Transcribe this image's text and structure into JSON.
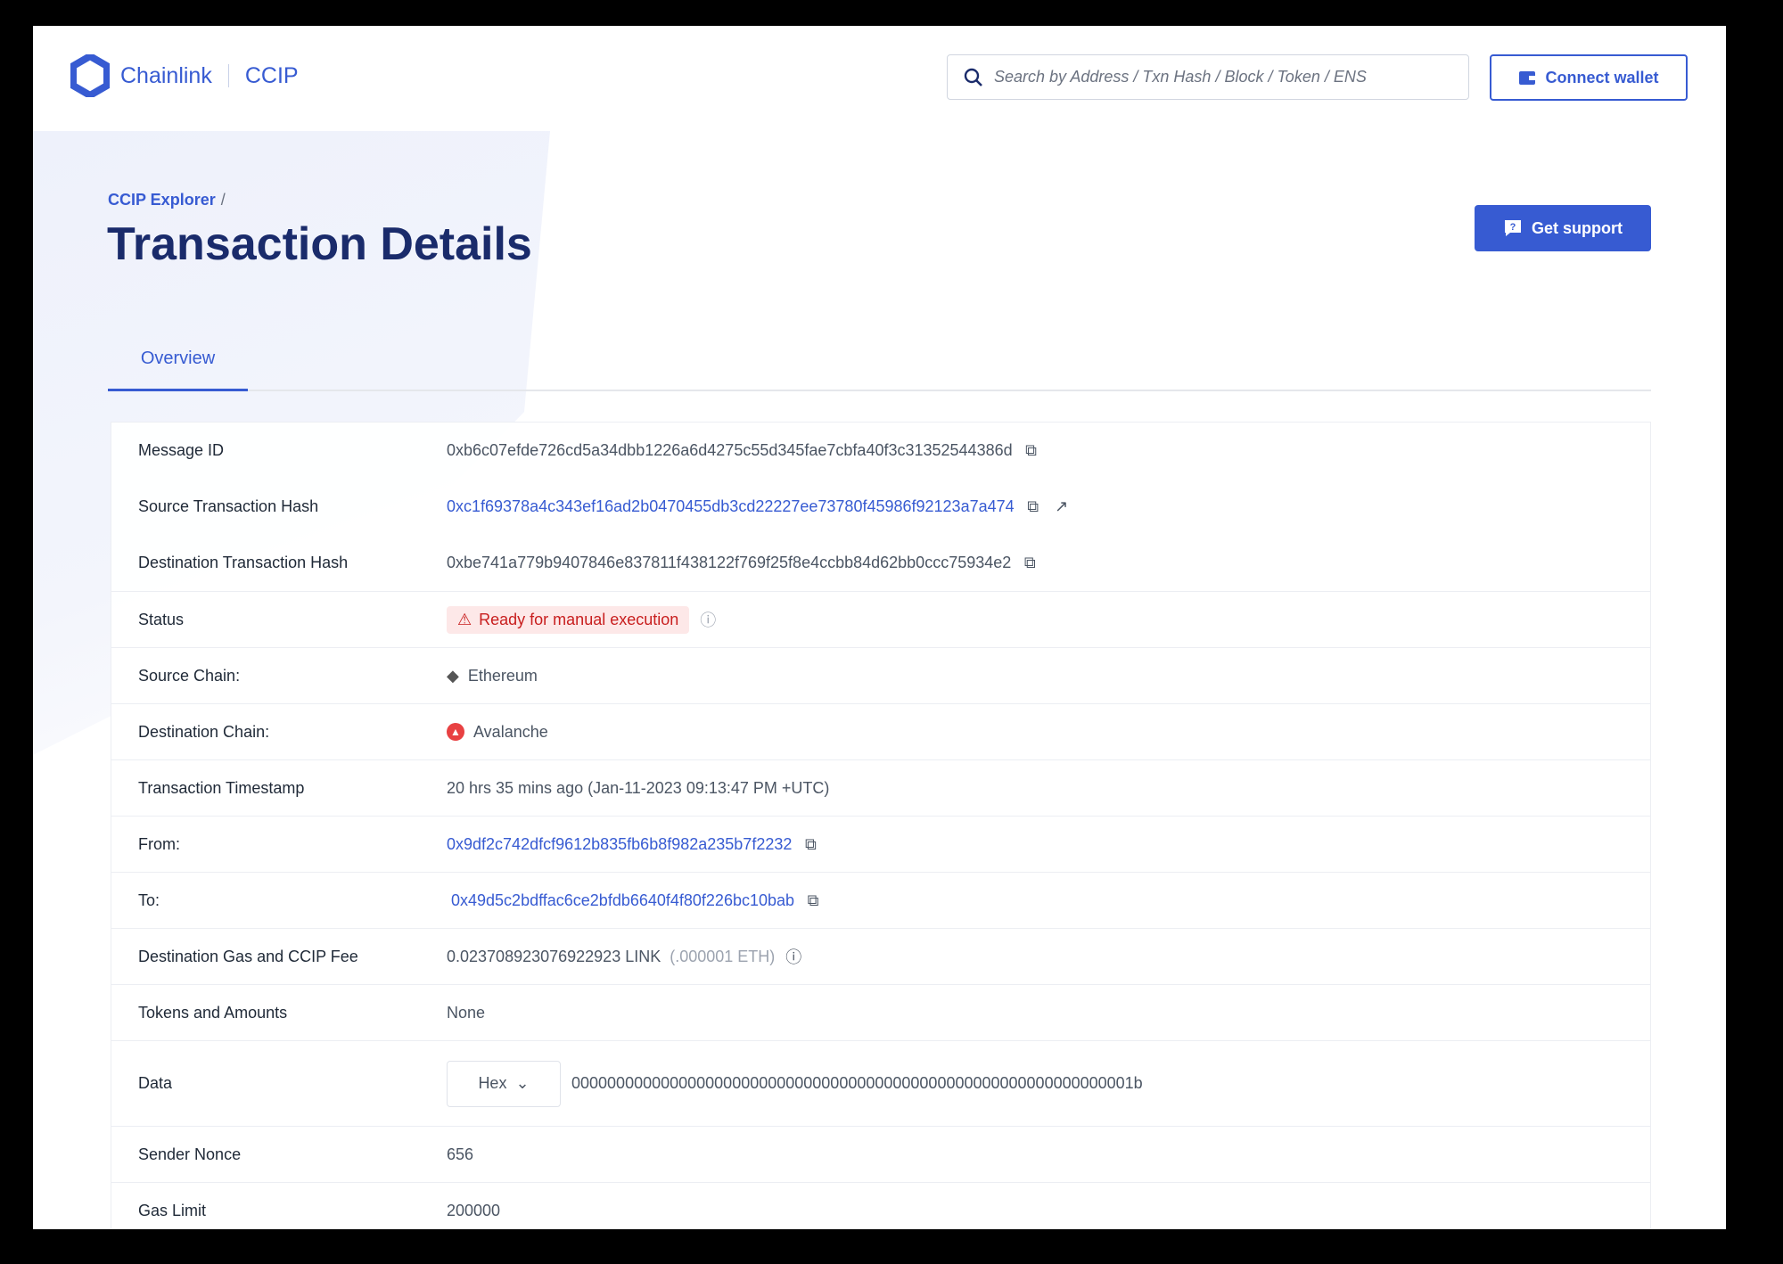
{
  "header": {
    "brand": "Chainlink",
    "product": "CCIP",
    "search_placeholder": "Search by Address / Txn Hash / Block / Token / ENS",
    "connect_wallet": "Connect wallet"
  },
  "breadcrumb": {
    "root": "CCIP Explorer",
    "separator": "/"
  },
  "page": {
    "title": "Transaction Details",
    "get_support": "Get support"
  },
  "tabs": [
    {
      "label": "Overview",
      "active": true
    }
  ],
  "details": {
    "message_id": {
      "label": "Message ID",
      "value": "0xb6c07efde726cd5a34dbb1226a6d4275c55d345fae7cbfa40f3c31352544386d"
    },
    "source_tx": {
      "label": "Source Transaction Hash",
      "value": "0xc1f69378a4c343ef16ad2b0470455db3cd22227ee73780f45986f92123a7a474"
    },
    "dest_tx": {
      "label": "Destination Transaction Hash",
      "value": "0xbe741a779b9407846e837811f438122f769f25f8e4ccbb84d62bb0ccc75934e2"
    },
    "status": {
      "label": "Status",
      "value": "Ready for manual execution"
    },
    "source_chain": {
      "label": "Source Chain:",
      "value": "Ethereum"
    },
    "dest_chain": {
      "label": "Destination Chain:",
      "value": "Avalanche"
    },
    "timestamp": {
      "label": "Transaction Timestamp",
      "value": "20 hrs 35 mins ago (Jan-11-2023 09:13:47 PM +UTC)"
    },
    "from": {
      "label": "From:",
      "value": "0x9df2c742dfcf9612b835fb6b8f982a235b7f2232"
    },
    "to": {
      "label": "To:",
      "value": "0x49d5c2bdffac6ce2bfdb6640f4f80f226bc10bab"
    },
    "fee": {
      "label": "Destination Gas and CCIP Fee",
      "value": "0.023708923076922923 LINK",
      "secondary": "(.000001 ETH)"
    },
    "tokens": {
      "label": "Tokens and Amounts",
      "value": "None"
    },
    "data": {
      "label": "Data",
      "format": "Hex",
      "value": "000000000000000000000000000000000000000000000000000000000000001b"
    },
    "nonce": {
      "label": "Sender Nonce",
      "value": "656"
    },
    "gas_limit": {
      "label": "Gas Limit",
      "value": "200000"
    }
  },
  "colors": {
    "accent": "#375bd2",
    "title": "#1a2b6b",
    "status_error": "#c81e1e",
    "status_bg": "#fde8e8"
  }
}
